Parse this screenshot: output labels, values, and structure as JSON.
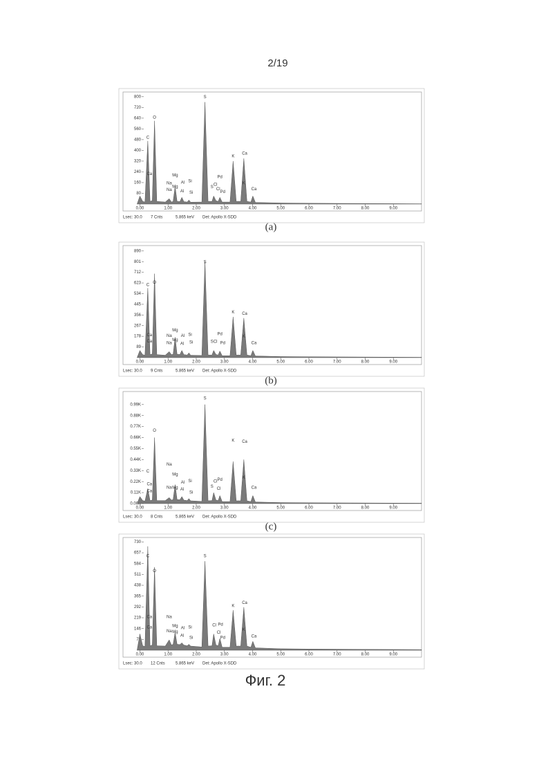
{
  "page_number": "2/19",
  "figure_caption": "Фиг. 2",
  "chart_data": [
    {
      "type": "area",
      "caption": "(a)",
      "footer": [
        "Lsec: 30.0",
        "7 Cnts",
        "5.865 keV",
        "Det: Apollo X-SDD"
      ],
      "color": "#7a7a7a",
      "x": [
        -0.1,
        0.0,
        0.1,
        0.18,
        0.28,
        0.36,
        0.44,
        0.52,
        0.6,
        0.9,
        1.04,
        1.12,
        1.18,
        1.25,
        1.32,
        1.42,
        1.49,
        1.56,
        1.68,
        1.74,
        1.8,
        2.2,
        2.31,
        2.42,
        2.56,
        2.62,
        2.7,
        2.78,
        2.84,
        2.92,
        3.2,
        3.31,
        3.42,
        3.58,
        3.69,
        3.8,
        3.94,
        4.01,
        4.1,
        5.0,
        6.0,
        7.0,
        8.0,
        9.0,
        10.0
      ],
      "values": [
        0,
        60,
        20,
        15,
        470,
        20,
        25,
        620,
        20,
        15,
        40,
        15,
        20,
        130,
        20,
        18,
        50,
        18,
        15,
        30,
        14,
        15,
        760,
        20,
        20,
        60,
        25,
        20,
        50,
        15,
        15,
        320,
        20,
        20,
        340,
        20,
        15,
        60,
        12,
        8,
        6,
        5,
        4,
        3,
        2
      ],
      "xlim": [
        -0.6,
        10.0
      ],
      "ylim": [
        0,
        835
      ],
      "xticks": [
        {
          "value": 0,
          "label": "0.00"
        },
        {
          "value": 1,
          "label": "1.00"
        },
        {
          "value": 2,
          "label": "2.00"
        },
        {
          "value": 3,
          "label": "3.00"
        },
        {
          "value": 4,
          "label": "4.00"
        },
        {
          "value": 5,
          "label": "5.00"
        },
        {
          "value": 6,
          "label": "6.00"
        },
        {
          "value": 7,
          "label": "7.00"
        },
        {
          "value": 8,
          "label": "8.00"
        },
        {
          "value": 9,
          "label": "9.00"
        }
      ],
      "yticks": [
        80,
        160,
        240,
        320,
        400,
        480,
        560,
        640,
        720,
        800
      ],
      "annotations": [
        {
          "text": "C",
          "x": 0.28,
          "y": 480
        },
        {
          "text": "Ca",
          "x": 0.34,
          "y": 210
        },
        {
          "text": "O",
          "x": 0.52,
          "y": 630
        },
        {
          "text": "Mg",
          "x": 1.25,
          "y": 200
        },
        {
          "text": "Na",
          "x": 1.04,
          "y": 140
        },
        {
          "text": "Al",
          "x": 1.52,
          "y": 145
        },
        {
          "text": "Si",
          "x": 1.78,
          "y": 155
        },
        {
          "text": "Na",
          "x": 1.04,
          "y": 90
        },
        {
          "text": "Mg",
          "x": 1.25,
          "y": 115
        },
        {
          "text": "Al",
          "x": 1.5,
          "y": 80
        },
        {
          "text": "Si",
          "x": 1.82,
          "y": 70
        },
        {
          "text": "S",
          "x": 2.31,
          "y": 780
        },
        {
          "text": "S",
          "x": 2.56,
          "y": 110
        },
        {
          "text": "Cl",
          "x": 2.68,
          "y": 130
        },
        {
          "text": "Pd",
          "x": 2.84,
          "y": 185
        },
        {
          "text": "Cl",
          "x": 2.78,
          "y": 95
        },
        {
          "text": "Pd",
          "x": 2.94,
          "y": 75
        },
        {
          "text": "K",
          "x": 3.31,
          "y": 340
        },
        {
          "text": "Ca",
          "x": 3.72,
          "y": 360
        },
        {
          "text": "K",
          "x": 3.69,
          "y": 140
        },
        {
          "text": "Ca",
          "x": 4.05,
          "y": 95
        }
      ]
    },
    {
      "type": "area",
      "caption": "(b)",
      "footer": [
        "Lsec: 30.0",
        "9 Cnts",
        "5.865 keV",
        "Det: Apollo X-SDD"
      ],
      "color": "#7a7a7a",
      "x": [
        -0.1,
        0.0,
        0.1,
        0.18,
        0.28,
        0.36,
        0.44,
        0.52,
        0.6,
        0.9,
        1.04,
        1.12,
        1.18,
        1.25,
        1.32,
        1.42,
        1.49,
        1.56,
        1.68,
        1.74,
        1.8,
        2.2,
        2.31,
        2.42,
        2.56,
        2.62,
        2.7,
        2.78,
        2.84,
        2.92,
        3.2,
        3.31,
        3.42,
        3.58,
        3.69,
        3.8,
        3.94,
        4.01,
        4.1,
        5.0,
        6.0,
        7.0,
        8.0,
        9.0,
        10.0
      ],
      "values": [
        0,
        60,
        25,
        20,
        580,
        25,
        30,
        700,
        25,
        20,
        50,
        25,
        28,
        170,
        28,
        26,
        60,
        25,
        22,
        40,
        20,
        18,
        800,
        22,
        22,
        60,
        26,
        22,
        55,
        16,
        16,
        340,
        22,
        22,
        330,
        22,
        16,
        60,
        14,
        9,
        7,
        6,
        5,
        4,
        3
      ],
      "xlim": [
        -0.6,
        10.0
      ],
      "ylim": [
        0,
        935
      ],
      "xticks": [
        {
          "value": 0,
          "label": "0.00"
        },
        {
          "value": 1,
          "label": "1.00"
        },
        {
          "value": 2,
          "label": "2.00"
        },
        {
          "value": 3,
          "label": "3.00"
        },
        {
          "value": 4,
          "label": "4.00"
        },
        {
          "value": 5,
          "label": "5.00"
        },
        {
          "value": 6,
          "label": "6.00"
        },
        {
          "value": 7,
          "label": "7.00"
        },
        {
          "value": 8,
          "label": "8.00"
        },
        {
          "value": 9,
          "label": "9.00"
        }
      ],
      "yticks": [
        89,
        178,
        267,
        356,
        445,
        534,
        623,
        712,
        801,
        890
      ],
      "annotations": [
        {
          "text": "C",
          "x": 0.28,
          "y": 590
        },
        {
          "text": "Ca",
          "x": 0.34,
          "y": 170
        },
        {
          "text": "Ca",
          "x": 0.34,
          "y": 120
        },
        {
          "text": "O",
          "x": 0.52,
          "y": 610
        },
        {
          "text": "Mg",
          "x": 1.25,
          "y": 210
        },
        {
          "text": "Na",
          "x": 1.04,
          "y": 165
        },
        {
          "text": "Al",
          "x": 1.52,
          "y": 165
        },
        {
          "text": "Si",
          "x": 1.78,
          "y": 175
        },
        {
          "text": "Na",
          "x": 1.04,
          "y": 105
        },
        {
          "text": "Mg",
          "x": 1.25,
          "y": 130
        },
        {
          "text": "Al",
          "x": 1.5,
          "y": 100
        },
        {
          "text": "Si",
          "x": 1.82,
          "y": 110
        },
        {
          "text": "S",
          "x": 2.31,
          "y": 780
        },
        {
          "text": "S",
          "x": 2.56,
          "y": 115
        },
        {
          "text": "Cl",
          "x": 2.68,
          "y": 115
        },
        {
          "text": "Pd",
          "x": 2.84,
          "y": 180
        },
        {
          "text": "Pd",
          "x": 2.94,
          "y": 105
        },
        {
          "text": "K",
          "x": 3.31,
          "y": 360
        },
        {
          "text": "Ca",
          "x": 3.72,
          "y": 350
        },
        {
          "text": "K",
          "x": 3.69,
          "y": 160
        },
        {
          "text": "Ca",
          "x": 4.05,
          "y": 105
        }
      ]
    },
    {
      "type": "area",
      "caption": "(c)",
      "footer": [
        "Lsec: 30.0",
        "8 Cnts",
        "5.865 keV",
        "Det: Apollo X-SDD"
      ],
      "color": "#7a7a7a",
      "x": [
        -0.1,
        0.0,
        0.1,
        0.18,
        0.28,
        0.36,
        0.44,
        0.52,
        0.6,
        0.9,
        1.04,
        1.12,
        1.18,
        1.25,
        1.32,
        1.42,
        1.49,
        1.56,
        1.68,
        1.74,
        1.8,
        2.2,
        2.31,
        2.42,
        2.56,
        2.62,
        2.7,
        2.78,
        2.84,
        2.92,
        3.2,
        3.31,
        3.42,
        3.58,
        3.69,
        3.8,
        3.94,
        4.01,
        4.1,
        5.0,
        6.0,
        7.0,
        8.0,
        9.0,
        10.0
      ],
      "values": [
        0,
        70,
        30,
        25,
        150,
        30,
        35,
        660,
        30,
        30,
        60,
        35,
        40,
        190,
        40,
        38,
        70,
        35,
        30,
        50,
        28,
        22,
        990,
        28,
        30,
        110,
        35,
        30,
        80,
        20,
        20,
        420,
        28,
        28,
        440,
        28,
        20,
        80,
        16,
        10,
        8,
        7,
        6,
        5,
        4
      ],
      "xlim": [
        -0.6,
        10.0
      ],
      "ylim": [
        0,
        1120
      ],
      "xticks": [
        {
          "value": 0,
          "label": "0.00"
        },
        {
          "value": 1,
          "label": "1.00"
        },
        {
          "value": 2,
          "label": "2.00"
        },
        {
          "value": 3,
          "label": "3.00"
        },
        {
          "value": 4,
          "label": "4.00"
        },
        {
          "value": 5,
          "label": "5.00"
        },
        {
          "value": 6,
          "label": "6.00"
        },
        {
          "value": 7,
          "label": "7.00"
        },
        {
          "value": 8,
          "label": "8.00"
        },
        {
          "value": 9,
          "label": "9.00"
        }
      ],
      "yticks": [
        {
          "value": 0,
          "label": "0.00K"
        },
        {
          "value": 110,
          "label": "0.11K"
        },
        {
          "value": 220,
          "label": "0.22K"
        },
        {
          "value": 330,
          "label": "0.33K"
        },
        {
          "value": 440,
          "label": "0.44K"
        },
        {
          "value": 550,
          "label": "0.55K"
        },
        {
          "value": 660,
          "label": "0.66K"
        },
        {
          "value": 770,
          "label": "0.77K"
        },
        {
          "value": 880,
          "label": "0.88K"
        },
        {
          "value": 990,
          "label": "0.99K"
        }
      ],
      "annotations": [
        {
          "text": "C",
          "x": 0.28,
          "y": 300
        },
        {
          "text": "Ca",
          "x": 0.34,
          "y": 175
        },
        {
          "text": "Ca",
          "x": 0.34,
          "y": 105
        },
        {
          "text": "O",
          "x": 0.52,
          "y": 710
        },
        {
          "text": "Na",
          "x": 1.04,
          "y": 370
        },
        {
          "text": "Mg",
          "x": 1.25,
          "y": 270
        },
        {
          "text": "Al",
          "x": 1.52,
          "y": 190
        },
        {
          "text": "Si",
          "x": 1.78,
          "y": 205
        },
        {
          "text": "Na",
          "x": 1.04,
          "y": 140
        },
        {
          "text": "Mg",
          "x": 1.25,
          "y": 140
        },
        {
          "text": "Al",
          "x": 1.5,
          "y": 120
        },
        {
          "text": "Si",
          "x": 1.82,
          "y": 90
        },
        {
          "text": "S",
          "x": 2.31,
          "y": 1030
        },
        {
          "text": "S",
          "x": 2.56,
          "y": 150
        },
        {
          "text": "Cl",
          "x": 2.68,
          "y": 200
        },
        {
          "text": "Pd",
          "x": 2.84,
          "y": 220
        },
        {
          "text": "Cl",
          "x": 2.8,
          "y": 130
        },
        {
          "text": "K",
          "x": 3.31,
          "y": 610
        },
        {
          "text": "Ca",
          "x": 3.72,
          "y": 600
        },
        {
          "text": "K",
          "x": 3.69,
          "y": 240
        },
        {
          "text": "Ca",
          "x": 4.05,
          "y": 140
        }
      ]
    },
    {
      "type": "area",
      "footer": [
        "Lsec: 30.0",
        "12 Cnts",
        "5.865 keV",
        "Det: Apollo X-SDD"
      ],
      "color": "#7a7a7a",
      "x": [
        -0.1,
        0.0,
        0.1,
        0.18,
        0.28,
        0.36,
        0.44,
        0.52,
        0.6,
        0.9,
        1.04,
        1.12,
        1.18,
        1.25,
        1.32,
        1.42,
        1.49,
        1.56,
        1.68,
        1.74,
        1.8,
        2.2,
        2.31,
        2.42,
        2.56,
        2.62,
        2.7,
        2.78,
        2.84,
        2.92,
        3.2,
        3.31,
        3.42,
        3.58,
        3.69,
        3.8,
        3.94,
        4.01,
        4.1,
        5.0,
        6.0,
        7.0,
        8.0,
        9.0,
        10.0
      ],
      "values": [
        0,
        110,
        30,
        25,
        700,
        30,
        35,
        560,
        30,
        28,
        70,
        35,
        40,
        120,
        40,
        38,
        50,
        35,
        30,
        40,
        28,
        22,
        600,
        28,
        30,
        110,
        35,
        30,
        80,
        20,
        20,
        270,
        28,
        28,
        290,
        28,
        20,
        60,
        16,
        10,
        8,
        7,
        6,
        5,
        4
      ],
      "xlim": [
        -0.6,
        10.0
      ],
      "ylim": [
        0,
        760
      ],
      "xticks": [
        {
          "value": 0,
          "label": "0.00"
        },
        {
          "value": 1,
          "label": "1.00"
        },
        {
          "value": 2,
          "label": "2.00"
        },
        {
          "value": 3,
          "label": "3.00"
        },
        {
          "value": 4,
          "label": "4.00"
        },
        {
          "value": 5,
          "label": "5.00"
        },
        {
          "value": 6,
          "label": "6.00"
        },
        {
          "value": 7,
          "label": "7.00"
        },
        {
          "value": 8,
          "label": "8.00"
        },
        {
          "value": 9,
          "label": "9.00"
        }
      ],
      "yticks": [
        73,
        146,
        219,
        292,
        365,
        438,
        511,
        584,
        657,
        730
      ],
      "annotations": [
        {
          "text": "C",
          "x": 0.28,
          "y": 620
        },
        {
          "text": "Ca",
          "x": 0.34,
          "y": 210
        },
        {
          "text": "Ca",
          "x": 0.34,
          "y": 140
        },
        {
          "text": "O",
          "x": 0.52,
          "y": 520
        },
        {
          "text": "Na",
          "x": 1.04,
          "y": 210
        },
        {
          "text": "Mg",
          "x": 1.25,
          "y": 150
        },
        {
          "text": "Al",
          "x": 1.52,
          "y": 135
        },
        {
          "text": "Si",
          "x": 1.78,
          "y": 140
        },
        {
          "text": "Na",
          "x": 1.04,
          "y": 115
        },
        {
          "text": "Mg",
          "x": 1.25,
          "y": 110
        },
        {
          "text": "Al",
          "x": 1.5,
          "y": 85
        },
        {
          "text": "Si",
          "x": 1.82,
          "y": 70
        },
        {
          "text": "S",
          "x": 2.31,
          "y": 620
        },
        {
          "text": "Cl",
          "x": 2.64,
          "y": 155
        },
        {
          "text": "Pd",
          "x": 2.86,
          "y": 160
        },
        {
          "text": "Cl",
          "x": 2.8,
          "y": 105
        },
        {
          "text": "Pd",
          "x": 2.94,
          "y": 70
        },
        {
          "text": "K",
          "x": 3.31,
          "y": 285
        },
        {
          "text": "Ca",
          "x": 3.72,
          "y": 305
        },
        {
          "text": "K",
          "x": 3.69,
          "y": 125
        },
        {
          "text": "Ca",
          "x": 4.05,
          "y": 80
        }
      ]
    }
  ]
}
